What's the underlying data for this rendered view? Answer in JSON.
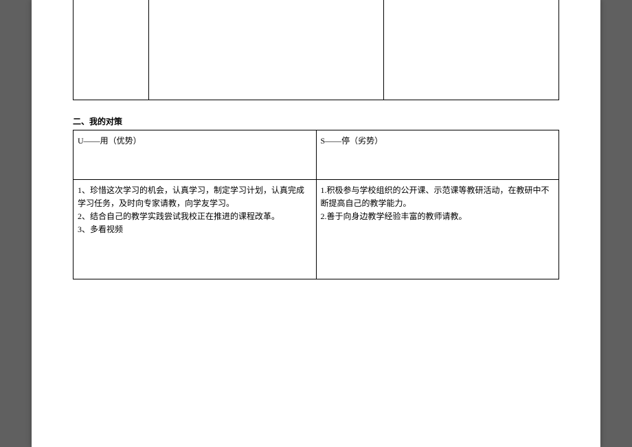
{
  "section2": {
    "title": "二、我的对策",
    "headers": {
      "left": "U——用（优势）",
      "right": "S——停（劣势）"
    },
    "content": {
      "left": "1、珍惜这次学习的机会，认真学习，制定学习计划，认真完成学习任务，及时向专家请教，向学友学习。\n2、结合自己的教学实践尝试我校正在推进的课程改革。\n3、多看视频",
      "right": "1.积极参与学校组织的公开课、示范课等教研活动，在教研中不断提高自己的教学能力。\n2.善于向身边教学经验丰富的教师请教。"
    }
  }
}
